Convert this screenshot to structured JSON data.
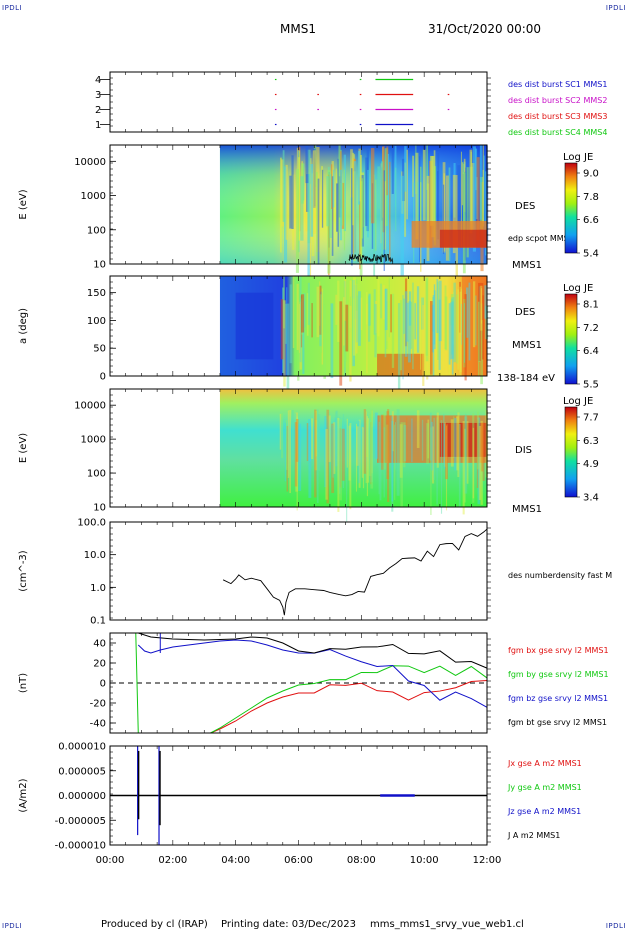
{
  "header": {
    "corner_tl": "IPDLI",
    "corner_tr": "IPDLI",
    "corner_bl": "IPDLI",
    "corner_br": "IPDLI",
    "spacecraft": "MMS1",
    "date": "31/Oct/2020 00:00"
  },
  "footer": {
    "produced_by": "Produced by cl (IRAP)",
    "printing_date": "Printing date: 03/Dec/2023",
    "script": "mms_mms1_srvy_vue_web1.cl"
  },
  "colors": {
    "c_blue": "#1010c8",
    "c_magenta": "#c810c8",
    "c_red": "#e01010",
    "c_green": "#10c810",
    "c_black": "#000000"
  },
  "chart_data": [
    {
      "type": "scatter",
      "id": "availability",
      "ylim": [
        0.5,
        4.5
      ],
      "yticks": [
        "1",
        "2",
        "3",
        "4"
      ],
      "legend": [
        {
          "label": "des dist burst SC1 MMS1",
          "color": "#1010c8"
        },
        {
          "label": "des dist burst SC2 MMS2",
          "color": "#c810c8"
        },
        {
          "label": "des dist burst SC3 MMS3",
          "color": "#e01010"
        },
        {
          "label": "des dist burst SC4 MMS4",
          "color": "#10c810"
        }
      ],
      "segments": [
        {
          "y": 1,
          "color": "#1010c8",
          "ranges": [
            [
              5.25,
              5.3
            ],
            [
              7.95,
              8.0
            ],
            [
              8.45,
              9.65
            ]
          ]
        },
        {
          "y": 2,
          "color": "#c810c8",
          "ranges": [
            [
              5.25,
              5.3
            ],
            [
              6.6,
              6.65
            ],
            [
              7.95,
              8.0
            ],
            [
              8.45,
              9.65
            ],
            [
              10.75,
              10.8
            ]
          ]
        },
        {
          "y": 3,
          "color": "#e01010",
          "ranges": [
            [
              5.25,
              5.3
            ],
            [
              6.6,
              6.65
            ],
            [
              7.95,
              8.0
            ],
            [
              8.45,
              9.65
            ],
            [
              10.75,
              10.8
            ]
          ]
        },
        {
          "y": 4,
          "color": "#10c810",
          "ranges": [
            [
              5.25,
              5.3
            ],
            [
              7.95,
              8.0
            ],
            [
              8.45,
              9.65
            ]
          ]
        }
      ]
    },
    {
      "type": "heatmap",
      "id": "des-energy",
      "ylabel": "E (eV)",
      "yscale": "log",
      "ylim": [
        10,
        30000
      ],
      "yticks": [
        "10",
        "100",
        "1000",
        "10000"
      ],
      "data_start_hour": 3.5,
      "instrument": "DES",
      "overlay_label": "edp scpot MMS1",
      "spacecraft_label": "MMS1",
      "colorbar": {
        "title": "Log JE",
        "ticks": [
          "9.0",
          "7.8",
          "6.6",
          "5.4"
        ]
      }
    },
    {
      "type": "heatmap",
      "id": "des-pitch",
      "ylabel": "a (deg)",
      "ylim": [
        0,
        180
      ],
      "yticks": [
        "0",
        "50",
        "100",
        "150"
      ],
      "data_start_hour": 3.5,
      "instrument": "DES",
      "spacecraft_label": "MMS1",
      "energy_range": "138-184 eV",
      "colorbar": {
        "title": "Log JE",
        "ticks": [
          "8.1",
          "7.2",
          "6.4",
          "5.5"
        ]
      }
    },
    {
      "type": "heatmap",
      "id": "dis-energy",
      "ylabel": "E (eV)",
      "yscale": "log",
      "ylim": [
        10,
        30000
      ],
      "yticks": [
        "10",
        "100",
        "1000",
        "10000"
      ],
      "data_start_hour": 3.5,
      "instrument": "DIS",
      "spacecraft_label": "MMS1",
      "colorbar": {
        "title": "Log JE",
        "ticks": [
          "7.7",
          "6.3",
          "4.9",
          "3.4"
        ]
      }
    },
    {
      "type": "line",
      "id": "density",
      "ylabel": "(cm^-3)",
      "yscale": "log",
      "ylim": [
        0.1,
        100
      ],
      "yticks": [
        "0.1",
        "1.0",
        "10.0",
        "100.0"
      ],
      "legend": [
        {
          "label": "des numberdensity fast M",
          "color": "#000000"
        }
      ],
      "series": [
        {
          "name": "des numberdensity fast M",
          "x": [
            3.6,
            3.85,
            4.0,
            4.1,
            4.3,
            4.5,
            4.8,
            5.0,
            5.2,
            5.4,
            5.5,
            5.55,
            5.6,
            5.7,
            5.9,
            6.2,
            6.5,
            6.8,
            7.0,
            7.3,
            7.5,
            7.7,
            7.9,
            8.1,
            8.3,
            8.5,
            8.7,
            8.9,
            9.1,
            9.3,
            9.5,
            9.7,
            9.9,
            10.1,
            10.3,
            10.5,
            10.7,
            10.9,
            11.1,
            11.3,
            11.5,
            11.7,
            11.9,
            12.0
          ],
          "values": [
            1.7,
            1.3,
            1.8,
            2.4,
            1.7,
            1.9,
            1.6,
            0.9,
            0.5,
            0.4,
            0.25,
            0.14,
            0.35,
            0.7,
            0.9,
            0.9,
            0.85,
            0.8,
            0.7,
            0.6,
            0.55,
            0.6,
            0.75,
            1.0,
            1.5,
            1.8,
            2.2,
            3.5,
            5.0,
            7.0,
            6.5,
            8.0,
            9.0,
            11.0,
            14.0,
            15.0,
            16.0,
            18.0,
            20.0,
            28.0,
            32.0,
            40.0,
            38.0,
            42.0
          ]
        }
      ]
    },
    {
      "type": "line",
      "id": "magnetic-field",
      "ylabel": "(nT)",
      "ylim": [
        -50,
        50
      ],
      "yticks": [
        "-40",
        "-20",
        "0",
        "20",
        "40"
      ],
      "legend": [
        {
          "label": "fgm bx gse srvy l2 MMS1",
          "color": "#e01010"
        },
        {
          "label": "fgm by gse srvy l2 MMS1",
          "color": "#10c810"
        },
        {
          "label": "fgm bz gse srvy l2 MMS1",
          "color": "#1010c8"
        },
        {
          "label": "fgm bt gse srvy l2 MMS1",
          "color": "#000000"
        }
      ],
      "series": [
        {
          "name": "fgm bt gse srvy l2 MMS1",
          "color": "#000000",
          "x": [
            0.9,
            1.3,
            2.0,
            3.0,
            4.0,
            4.5,
            5.0,
            5.5,
            6.0,
            6.5,
            7.0,
            7.5,
            8.0,
            8.5,
            9.0,
            9.5,
            10.0,
            10.5,
            11.0,
            11.5,
            12.0
          ],
          "values": [
            50,
            46,
            44,
            43,
            44,
            46,
            45,
            40,
            32,
            33,
            35,
            37,
            38,
            37,
            36,
            34,
            32,
            28,
            26,
            23,
            20
          ]
        },
        {
          "name": "fgm bz gse srvy l2 MMS1",
          "color": "#1010c8",
          "x": [
            0.9,
            1.1,
            1.3,
            1.6,
            2.0,
            2.5,
            3.0,
            3.5,
            4.0,
            4.5,
            5.0,
            5.5,
            6.0,
            6.5,
            7.0,
            7.5,
            8.0,
            8.5,
            9.0,
            9.5,
            10.0,
            10.5,
            11.0,
            11.5,
            12.0
          ],
          "values": [
            38,
            32,
            30,
            33,
            36,
            38,
            40,
            42,
            43,
            42,
            38,
            33,
            30,
            31,
            30,
            28,
            25,
            20,
            12,
            5,
            -5,
            -12,
            -15,
            -18,
            -20
          ]
        },
        {
          "name": "fgm by gse srvy l2 MMS1",
          "color": "#10c810",
          "x": [
            0.82,
            0.86,
            0.9,
            3.2,
            3.5,
            4.0,
            4.5,
            5.0,
            5.5,
            6.0,
            6.5,
            7.0,
            7.5,
            8.0,
            8.5,
            9.0,
            9.5,
            10.0,
            10.5,
            11.0,
            11.5,
            12.0
          ],
          "values": [
            50,
            0,
            -50,
            -50,
            -45,
            -35,
            -25,
            -15,
            -8,
            -2,
            2,
            6,
            9,
            10,
            12,
            14,
            15,
            15,
            15,
            13,
            11,
            10
          ]
        },
        {
          "name": "fgm bx gse srvy l2 MMS1",
          "color": "#e01010",
          "x": [
            3.2,
            3.5,
            4.0,
            4.5,
            5.0,
            5.5,
            6.0,
            6.5,
            7.0,
            7.5,
            8.0,
            8.5,
            9.0,
            9.5,
            10.0,
            10.5,
            11.0,
            11.5,
            12.0
          ],
          "values": [
            -50,
            -46,
            -38,
            -28,
            -20,
            -14,
            -10,
            -6,
            -5,
            -4,
            -5,
            -8,
            -10,
            -12,
            -10,
            -5,
            0,
            5,
            8
          ]
        }
      ]
    },
    {
      "type": "line",
      "id": "current-density",
      "ylabel": "(A/m2)",
      "ylim": [
        -0.0001,
        0.0001
      ],
      "yticks": [
        "-0.000010",
        "-0.000005",
        "0.000000",
        "0.000005",
        "0.000010"
      ],
      "legend": [
        {
          "label": "Jx gse A m2 MMS1",
          "color": "#e01010"
        },
        {
          "label": "Jy gse A m2 MMS1",
          "color": "#10c810"
        },
        {
          "label": "Jz gse A m2 MMS1",
          "color": "#1010c8"
        },
        {
          "label": "J A m2 MMS1",
          "color": "#000000"
        }
      ],
      "xticks": [
        "00:00",
        "02:00",
        "04:00",
        "06:00",
        "08:00",
        "10:00",
        "12:00"
      ],
      "xlim": [
        0,
        12
      ]
    }
  ]
}
